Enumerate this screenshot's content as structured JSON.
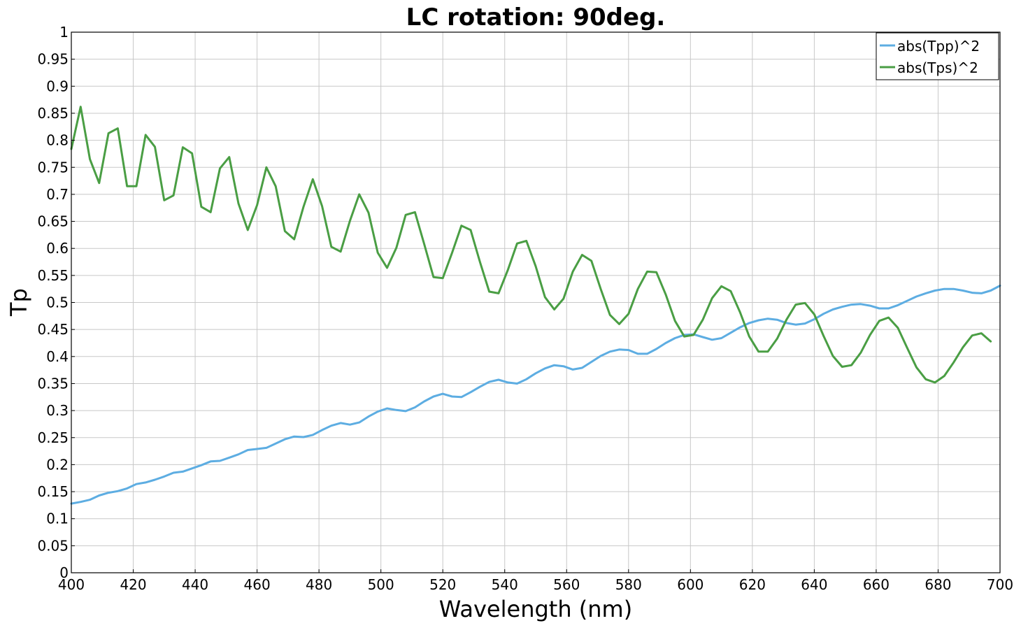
{
  "chart_data": {
    "type": "line",
    "title": "LC rotation: 90deg.",
    "xlabel": "Wavelength (nm)",
    "ylabel": "Tp",
    "xlim": [
      400,
      700
    ],
    "ylim": [
      0,
      1
    ],
    "x_ticks": [
      400,
      420,
      440,
      460,
      480,
      500,
      520,
      540,
      560,
      580,
      600,
      620,
      640,
      660,
      680,
      700
    ],
    "y_ticks": [
      0,
      0.05,
      0.1,
      0.15,
      0.2,
      0.25,
      0.3,
      0.35,
      0.4,
      0.45,
      0.5,
      0.55,
      0.6,
      0.65,
      0.7,
      0.75,
      0.8,
      0.85,
      0.9,
      0.95,
      1
    ],
    "y_tick_labels": [
      "0",
      "0.05",
      "0.1",
      "0.15",
      "0.2",
      "0.25",
      "0.3",
      "0.35",
      "0.4",
      "0.45",
      "0.5",
      "0.55",
      "0.6",
      "0.65",
      "0.7",
      "0.75",
      "0.8",
      "0.85",
      "0.9",
      "0.95",
      "1"
    ],
    "grid": true,
    "legend_position": "top-right",
    "series": [
      {
        "name": "abs(Tpp)^2",
        "color": "#5dade2",
        "points": [
          [
            400,
            0.128
          ],
          [
            403,
            0.131
          ],
          [
            406,
            0.135
          ],
          [
            409,
            0.143
          ],
          [
            412,
            0.148
          ],
          [
            415,
            0.151
          ],
          [
            418,
            0.156
          ],
          [
            421,
            0.164
          ],
          [
            424,
            0.167
          ],
          [
            427,
            0.172
          ],
          [
            430,
            0.178
          ],
          [
            433,
            0.185
          ],
          [
            436,
            0.187
          ],
          [
            439,
            0.193
          ],
          [
            442,
            0.199
          ],
          [
            445,
            0.206
          ],
          [
            448,
            0.207
          ],
          [
            451,
            0.213
          ],
          [
            454,
            0.219
          ],
          [
            457,
            0.227
          ],
          [
            460,
            0.229
          ],
          [
            463,
            0.231
          ],
          [
            466,
            0.239
          ],
          [
            469,
            0.247
          ],
          [
            472,
            0.252
          ],
          [
            475,
            0.251
          ],
          [
            478,
            0.255
          ],
          [
            481,
            0.264
          ],
          [
            484,
            0.272
          ],
          [
            487,
            0.277
          ],
          [
            490,
            0.274
          ],
          [
            493,
            0.278
          ],
          [
            496,
            0.289
          ],
          [
            499,
            0.298
          ],
          [
            502,
            0.304
          ],
          [
            505,
            0.301
          ],
          [
            508,
            0.299
          ],
          [
            511,
            0.306
          ],
          [
            514,
            0.317
          ],
          [
            517,
            0.326
          ],
          [
            520,
            0.331
          ],
          [
            523,
            0.326
          ],
          [
            526,
            0.325
          ],
          [
            529,
            0.334
          ],
          [
            532,
            0.344
          ],
          [
            535,
            0.353
          ],
          [
            538,
            0.357
          ],
          [
            541,
            0.352
          ],
          [
            544,
            0.35
          ],
          [
            547,
            0.358
          ],
          [
            550,
            0.369
          ],
          [
            553,
            0.378
          ],
          [
            556,
            0.384
          ],
          [
            559,
            0.382
          ],
          [
            562,
            0.376
          ],
          [
            565,
            0.379
          ],
          [
            568,
            0.39
          ],
          [
            571,
            0.401
          ],
          [
            574,
            0.409
          ],
          [
            577,
            0.413
          ],
          [
            580,
            0.412
          ],
          [
            583,
            0.405
          ],
          [
            586,
            0.405
          ],
          [
            589,
            0.414
          ],
          [
            592,
            0.425
          ],
          [
            595,
            0.434
          ],
          [
            598,
            0.44
          ],
          [
            601,
            0.441
          ],
          [
            604,
            0.436
          ],
          [
            607,
            0.431
          ],
          [
            610,
            0.434
          ],
          [
            613,
            0.444
          ],
          [
            616,
            0.454
          ],
          [
            619,
            0.462
          ],
          [
            622,
            0.467
          ],
          [
            625,
            0.47
          ],
          [
            628,
            0.468
          ],
          [
            631,
            0.462
          ],
          [
            634,
            0.459
          ],
          [
            637,
            0.461
          ],
          [
            640,
            0.469
          ],
          [
            643,
            0.479
          ],
          [
            646,
            0.487
          ],
          [
            649,
            0.492
          ],
          [
            652,
            0.496
          ],
          [
            655,
            0.497
          ],
          [
            658,
            0.494
          ],
          [
            661,
            0.489
          ],
          [
            664,
            0.489
          ],
          [
            667,
            0.495
          ],
          [
            670,
            0.503
          ],
          [
            673,
            0.511
          ],
          [
            676,
            0.517
          ],
          [
            679,
            0.522
          ],
          [
            682,
            0.525
          ],
          [
            685,
            0.525
          ],
          [
            688,
            0.522
          ],
          [
            691,
            0.518
          ],
          [
            694,
            0.517
          ],
          [
            697,
            0.522
          ],
          [
            700,
            0.531
          ]
        ]
      },
      {
        "name": "abs(Tps)^2",
        "color": "#4a9e44",
        "points": [
          [
            400,
            0.784
          ],
          [
            403,
            0.862
          ],
          [
            406,
            0.765
          ],
          [
            409,
            0.721
          ],
          [
            412,
            0.813
          ],
          [
            415,
            0.822
          ],
          [
            418,
            0.715
          ],
          [
            421,
            0.715
          ],
          [
            424,
            0.81
          ],
          [
            427,
            0.788
          ],
          [
            430,
            0.689
          ],
          [
            433,
            0.698
          ],
          [
            436,
            0.787
          ],
          [
            439,
            0.776
          ],
          [
            442,
            0.677
          ],
          [
            445,
            0.667
          ],
          [
            448,
            0.748
          ],
          [
            451,
            0.769
          ],
          [
            454,
            0.683
          ],
          [
            457,
            0.634
          ],
          [
            460,
            0.68
          ],
          [
            463,
            0.75
          ],
          [
            466,
            0.715
          ],
          [
            469,
            0.632
          ],
          [
            472,
            0.617
          ],
          [
            475,
            0.677
          ],
          [
            478,
            0.728
          ],
          [
            481,
            0.678
          ],
          [
            484,
            0.603
          ],
          [
            487,
            0.594
          ],
          [
            490,
            0.651
          ],
          [
            493,
            0.7
          ],
          [
            496,
            0.666
          ],
          [
            499,
            0.592
          ],
          [
            502,
            0.564
          ],
          [
            505,
            0.601
          ],
          [
            508,
            0.662
          ],
          [
            511,
            0.667
          ],
          [
            514,
            0.608
          ],
          [
            517,
            0.547
          ],
          [
            520,
            0.545
          ],
          [
            523,
            0.592
          ],
          [
            526,
            0.642
          ],
          [
            529,
            0.634
          ],
          [
            532,
            0.575
          ],
          [
            535,
            0.52
          ],
          [
            538,
            0.517
          ],
          [
            541,
            0.56
          ],
          [
            544,
            0.609
          ],
          [
            547,
            0.614
          ],
          [
            550,
            0.567
          ],
          [
            553,
            0.51
          ],
          [
            556,
            0.487
          ],
          [
            559,
            0.507
          ],
          [
            562,
            0.557
          ],
          [
            565,
            0.588
          ],
          [
            568,
            0.577
          ],
          [
            571,
            0.525
          ],
          [
            574,
            0.477
          ],
          [
            577,
            0.46
          ],
          [
            580,
            0.479
          ],
          [
            583,
            0.525
          ],
          [
            586,
            0.557
          ],
          [
            589,
            0.556
          ],
          [
            592,
            0.515
          ],
          [
            595,
            0.466
          ],
          [
            598,
            0.437
          ],
          [
            601,
            0.44
          ],
          [
            604,
            0.468
          ],
          [
            607,
            0.508
          ],
          [
            610,
            0.53
          ],
          [
            613,
            0.521
          ],
          [
            616,
            0.482
          ],
          [
            619,
            0.437
          ],
          [
            622,
            0.409
          ],
          [
            625,
            0.409
          ],
          [
            628,
            0.433
          ],
          [
            631,
            0.468
          ],
          [
            634,
            0.496
          ],
          [
            637,
            0.499
          ],
          [
            640,
            0.478
          ],
          [
            643,
            0.438
          ],
          [
            646,
            0.401
          ],
          [
            649,
            0.381
          ],
          [
            652,
            0.384
          ],
          [
            655,
            0.407
          ],
          [
            658,
            0.44
          ],
          [
            661,
            0.466
          ],
          [
            664,
            0.472
          ],
          [
            667,
            0.453
          ],
          [
            670,
            0.416
          ],
          [
            673,
            0.38
          ],
          [
            676,
            0.358
          ],
          [
            679,
            0.352
          ],
          [
            682,
            0.364
          ],
          [
            685,
            0.389
          ],
          [
            688,
            0.417
          ],
          [
            691,
            0.439
          ],
          [
            694,
            0.443
          ],
          [
            697,
            0.428
          ]
        ]
      }
    ]
  }
}
